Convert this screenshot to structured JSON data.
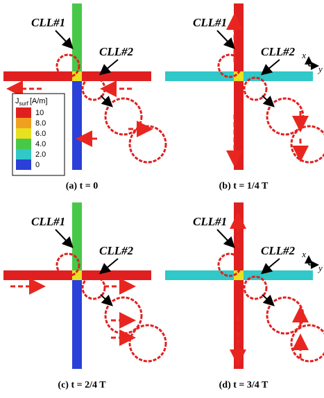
{
  "panels": [
    {
      "caption": "(a) t = 0",
      "labels": [
        "CLL#1",
        "CLL#2"
      ]
    },
    {
      "caption": "(b) t = 1/4 T",
      "labels": [
        "CLL#1",
        "CLL#2"
      ],
      "axes": {
        "x": "x",
        "y": "y"
      }
    },
    {
      "caption": "(c) t = 2/4 T",
      "labels": [
        "CLL#1",
        "CLL#2"
      ]
    },
    {
      "caption": "(d) t = 3/4 T",
      "labels": [
        "CLL#1",
        "CLL#2"
      ],
      "axes": {
        "x": "x",
        "y": "y"
      }
    }
  ],
  "legend": {
    "symbol": "J",
    "subscript": "surf",
    "unit": "[A/m]",
    "ticks": [
      "10",
      "8.0",
      "6.0",
      "4.0",
      "2.0",
      "0"
    ]
  }
}
